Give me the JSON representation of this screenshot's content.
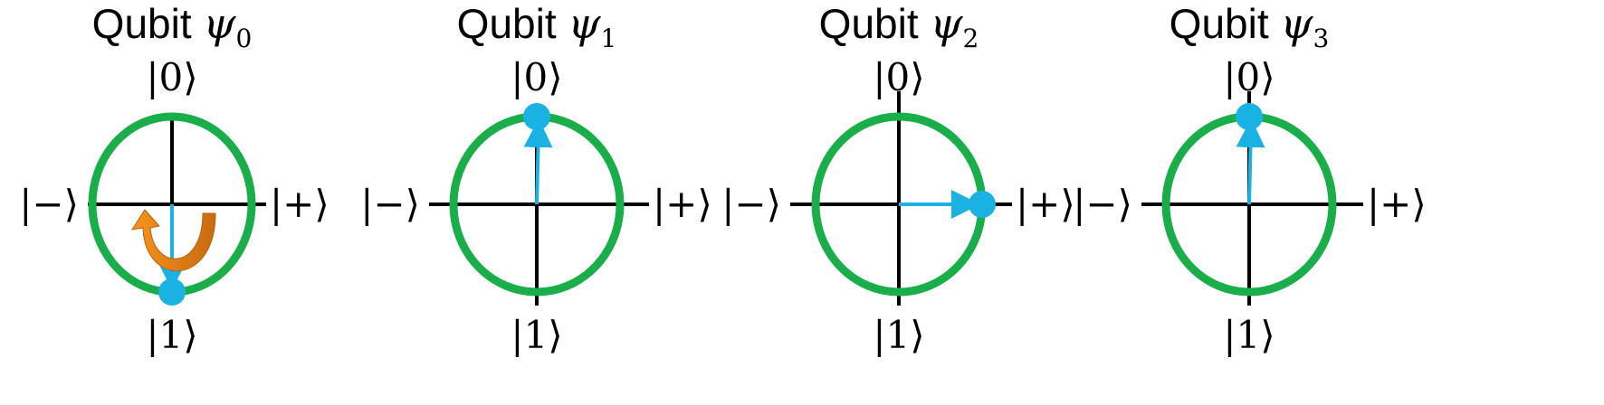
{
  "panels": [
    {
      "title_prefix": "Qubit",
      "title_symbol": "ψ",
      "title_subscript": "0",
      "labels": {
        "top": "|0⟩",
        "bottom": "|1⟩",
        "left": "|−⟩",
        "right": "|+⟩"
      },
      "state_angle_deg": 180,
      "flip_arrow": true
    },
    {
      "title_prefix": "Qubit",
      "title_symbol": "ψ",
      "title_subscript": "1",
      "labels": {
        "top": "|0⟩",
        "bottom": "|1⟩",
        "left": "|−⟩",
        "right": "|+⟩"
      },
      "state_angle_deg": 0,
      "flip_arrow": false
    },
    {
      "title_prefix": "Qubit",
      "title_symbol": "ψ",
      "title_subscript": "2",
      "labels": {
        "top": "|0⟩",
        "bottom": "|1⟩",
        "left": "|−⟩",
        "right": "|+⟩"
      },
      "state_angle_deg": 90,
      "flip_arrow": false
    },
    {
      "title_prefix": "Qubit",
      "title_symbol": "ψ",
      "title_subscript": "3",
      "labels": {
        "top": "|0⟩",
        "bottom": "|1⟩",
        "left": "|−⟩",
        "right": "|+⟩"
      },
      "state_angle_deg": 0,
      "flip_arrow": false
    }
  ],
  "colors": {
    "circle": "#1aae4b",
    "state_vector": "#1ab2e2",
    "flip_arrow": "#f08a1c"
  }
}
